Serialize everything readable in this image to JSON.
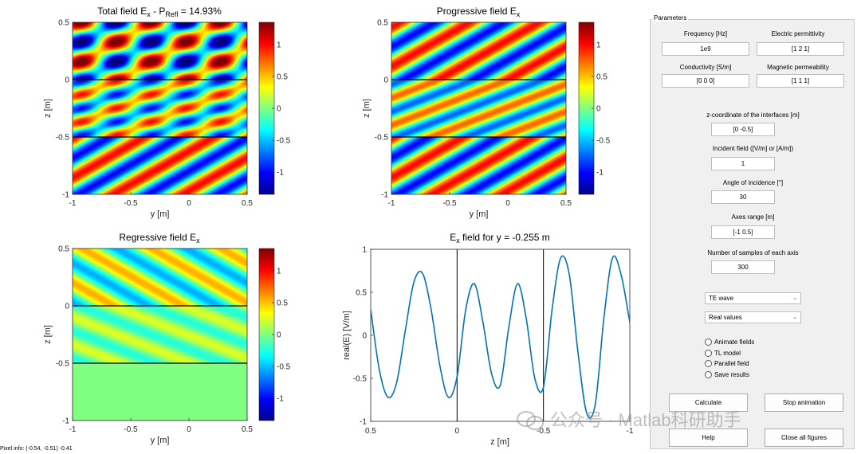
{
  "plots": {
    "total": {
      "title": "Total field E",
      "sub_x": "x",
      "title_mid": " - P",
      "sub_refl": "Refl",
      "title_tail": " = 14.93%"
    },
    "progressive": {
      "title": "Progressive field E",
      "sub_x": "x"
    },
    "regressive": {
      "title": "Regressive field E",
      "sub_x": "x"
    },
    "line": {
      "title_pre": "E",
      "sub_x": "x",
      "title_post": " field for y = -0.255 m"
    },
    "heat_xticks": [
      "-1",
      "-0.5",
      "0",
      "0.5"
    ],
    "heat_yticks": [
      "0.5",
      "0",
      "-0.5",
      "-1"
    ],
    "xlabel": "y [m]",
    "ylabel": "z [m]",
    "colorbar_ticks": [
      "1",
      "0.5",
      "0",
      "-0.5",
      "-1"
    ]
  },
  "chart_data": {
    "type": "line",
    "title": "Ex field for y = -0.255 m",
    "xlabel": "z [m]",
    "ylabel": "real(E) [V/m]",
    "xlim": [
      0.5,
      -1
    ],
    "ylim": [
      -1,
      1
    ],
    "x_reversed": true,
    "xticks": [
      "0.5",
      "0",
      "-0.5",
      "-1"
    ],
    "yticks": [
      "1",
      "0.5",
      "0",
      "-0.5",
      "-1"
    ],
    "interfaces": [
      0,
      -0.5
    ],
    "series": [
      {
        "name": "real(E)",
        "color": "#0072BD",
        "x": [
          0.5,
          0.45,
          0.4,
          0.35,
          0.3,
          0.25,
          0.2,
          0.15,
          0.1,
          0.05,
          0.0,
          -0.05,
          -0.1,
          -0.15,
          -0.2,
          -0.25,
          -0.3,
          -0.35,
          -0.4,
          -0.45,
          -0.5,
          -0.55,
          -0.6,
          -0.65,
          -0.7,
          -0.75,
          -0.8,
          -0.85,
          -0.9,
          -0.95,
          -1.0
        ],
        "values": [
          0.3,
          -0.4,
          -0.72,
          -0.55,
          0.05,
          0.62,
          0.72,
          0.3,
          -0.35,
          -0.72,
          -0.48,
          0.3,
          0.6,
          0.15,
          -0.45,
          -0.58,
          0.1,
          0.6,
          0.2,
          -0.5,
          -0.6,
          0.3,
          0.9,
          0.7,
          -0.2,
          -0.9,
          -0.8,
          0.2,
          0.9,
          0.7,
          0.15
        ]
      }
    ]
  },
  "params": {
    "legend": "Parameters",
    "frequency": {
      "label": "Frequency [Hz]",
      "value": "1e9"
    },
    "permittivity": {
      "label": "Electric permittivity",
      "value": "[1 2 1]"
    },
    "conductivity": {
      "label": "Conductivity [S/m]",
      "value": "[0 0 0]"
    },
    "permeability": {
      "label": "Magnetic permeability",
      "value": "[1 1 1]"
    },
    "zcoord": {
      "label": "z-coordinate of the interfaces [m]",
      "value": "[0 -0.5]"
    },
    "incident": {
      "label": "Incident field ([V/m] or [A/m])",
      "value": "1"
    },
    "angle": {
      "label": "Angle of incidence [°]",
      "value": "30"
    },
    "axes": {
      "label": "Axes range  [m]",
      "value": "[-1 0.5]"
    },
    "samples": {
      "label": "Number of samples of each axis",
      "value": "300"
    },
    "wave_type": "TE wave",
    "value_type": "Real values",
    "radios": [
      "Animate fields",
      "TL model",
      "Parallel field",
      "Save results"
    ],
    "buttons": {
      "calculate": "Calculate",
      "stop": "Stop animation",
      "help": "Help",
      "close": "Close all figures"
    }
  },
  "pixel_info": "Pixel info: (-0.54, -0.51)  -0.41",
  "watermark": "公众号 · Matlab科研助手",
  "colors": {
    "accent_line": "#0072BD",
    "panel_bg": "#f0f0f0"
  }
}
